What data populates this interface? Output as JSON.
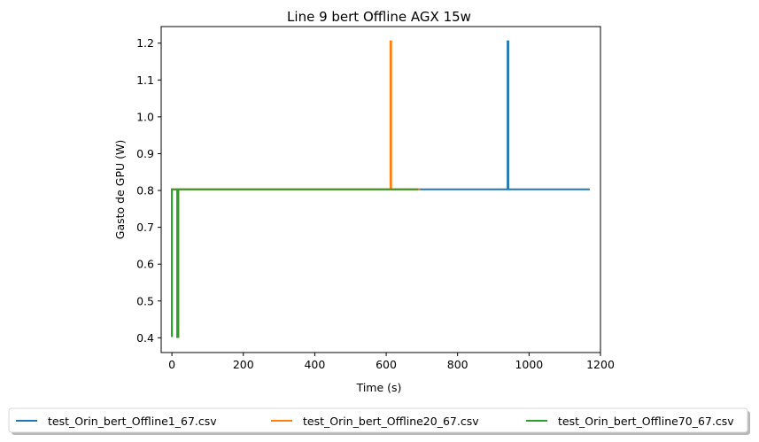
{
  "chart_data": {
    "type": "line",
    "title": "Line 9 bert Offline AGX 15w",
    "xlabel": "Time (s)",
    "ylabel": "Gasto de GPU (W)",
    "xlim": [
      -30,
      1200
    ],
    "ylim": [
      0.36,
      1.245
    ],
    "xticks": [
      0,
      200,
      400,
      600,
      800,
      1000,
      1200
    ],
    "yticks": [
      0.4,
      0.5,
      0.6,
      0.7,
      0.8,
      0.9,
      1.0,
      1.1,
      1.2
    ],
    "xtick_labels": [
      "0",
      "200",
      "400",
      "600",
      "800",
      "1000",
      "1200"
    ],
    "ytick_labels": [
      "0.4",
      "0.5",
      "0.6",
      "0.7",
      "0.8",
      "0.9",
      "1.0",
      "1.1",
      "1.2"
    ],
    "grid": false,
    "legend_position": "below-center",
    "series": [
      {
        "name": "test_Orin_bert_Offline1_67.csv",
        "color": "#1f77b4",
        "points": [
          [
            0,
            0.402
          ],
          [
            0,
            0.803
          ],
          [
            15,
            0.803
          ],
          [
            15,
            0.402
          ],
          [
            18,
            0.402
          ],
          [
            18,
            0.803
          ],
          [
            940,
            0.803
          ],
          [
            940,
            1.205
          ],
          [
            942,
            1.205
          ],
          [
            942,
            0.803
          ],
          [
            1170,
            0.803
          ]
        ]
      },
      {
        "name": "test_Orin_bert_Offline20_67.csv",
        "color": "#ff7f0e",
        "points": [
          [
            0,
            0.402
          ],
          [
            0,
            0.803
          ],
          [
            15,
            0.803
          ],
          [
            15,
            0.402
          ],
          [
            18,
            0.402
          ],
          [
            18,
            0.803
          ],
          [
            612,
            0.803
          ],
          [
            612,
            1.205
          ],
          [
            614,
            1.205
          ],
          [
            614,
            0.803
          ],
          [
            695,
            0.803
          ]
        ]
      },
      {
        "name": "test_Orin_bert_Offline70_67.csv",
        "color": "#2ca02c",
        "points": [
          [
            0,
            0.402
          ],
          [
            0,
            0.803
          ],
          [
            15,
            0.803
          ],
          [
            15,
            0.402
          ],
          [
            18,
            0.402
          ],
          [
            18,
            0.803
          ],
          [
            690,
            0.803
          ]
        ]
      }
    ]
  }
}
